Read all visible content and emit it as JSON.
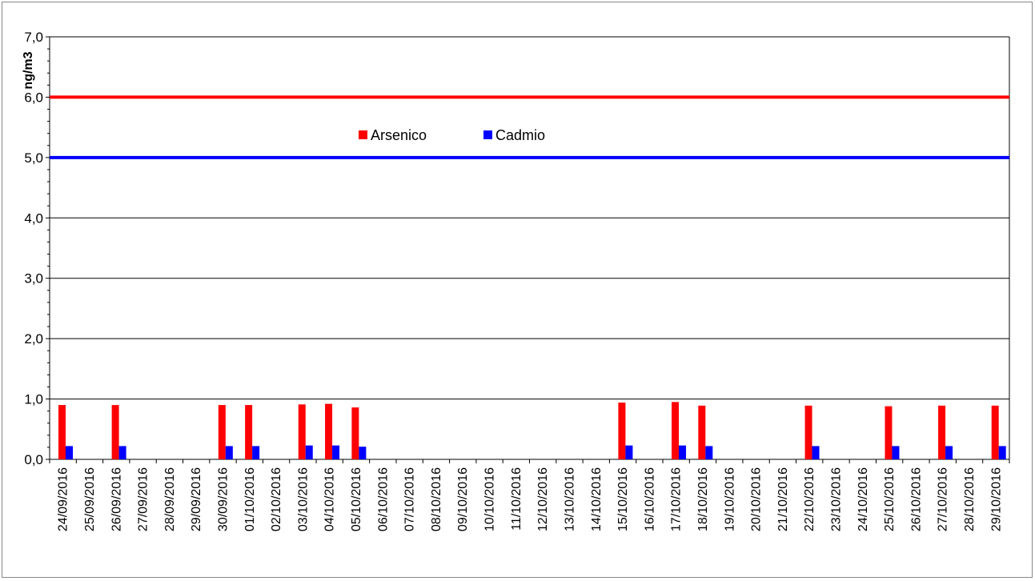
{
  "chart_data": {
    "type": "bar",
    "ylabel": "ng/m3",
    "ylim": [
      0,
      7
    ],
    "yticks": [
      "0,0",
      "1,0",
      "2,0",
      "3,0",
      "4,0",
      "5,0",
      "6,0",
      "7,0"
    ],
    "grid": true,
    "legend_position": "upper-center",
    "categories": [
      "24/09/2016",
      "25/09/2016",
      "26/09/2016",
      "27/09/2016",
      "28/09/2016",
      "29/09/2016",
      "30/09/2016",
      "01/10/2016",
      "02/10/2016",
      "03/10/2016",
      "04/10/2016",
      "05/10/2016",
      "06/10/2016",
      "07/10/2016",
      "08/10/2016",
      "09/10/2016",
      "10/10/2016",
      "11/10/2016",
      "12/10/2016",
      "13/10/2016",
      "14/10/2016",
      "15/10/2016",
      "16/10/2016",
      "17/10/2016",
      "18/10/2016",
      "19/10/2016",
      "20/10/2016",
      "21/10/2016",
      "22/10/2016",
      "23/10/2016",
      "24/10/2016",
      "25/10/2016",
      "26/10/2016",
      "27/10/2016",
      "28/10/2016",
      "29/10/2016"
    ],
    "series": [
      {
        "name": "Arsenico",
        "color": "#ff0000",
        "values": [
          0.9,
          null,
          0.9,
          null,
          null,
          null,
          0.9,
          0.9,
          null,
          0.91,
          0.92,
          0.86,
          null,
          null,
          null,
          null,
          null,
          null,
          null,
          null,
          null,
          0.94,
          null,
          0.95,
          0.89,
          null,
          null,
          null,
          0.89,
          null,
          null,
          0.88,
          null,
          0.89,
          null,
          0.89
        ]
      },
      {
        "name": "Cadmio",
        "color": "#0000ff",
        "values": [
          0.22,
          null,
          0.22,
          null,
          null,
          null,
          0.22,
          0.22,
          null,
          0.23,
          0.23,
          0.21,
          null,
          null,
          null,
          null,
          null,
          null,
          null,
          null,
          null,
          0.23,
          null,
          0.23,
          0.22,
          null,
          null,
          null,
          0.22,
          null,
          null,
          0.22,
          null,
          0.22,
          null,
          0.22
        ]
      }
    ],
    "reference_lines": [
      {
        "value": 6.0,
        "color": "#ff0000"
      },
      {
        "value": 5.0,
        "color": "#0000ff"
      }
    ]
  }
}
